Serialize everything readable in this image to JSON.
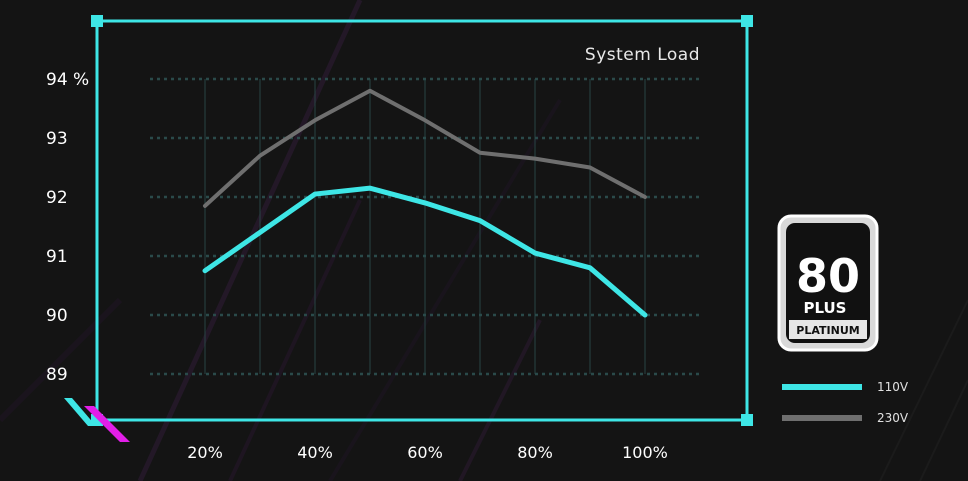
{
  "chart_data": {
    "type": "line",
    "title": "System Load",
    "x_axis_label": "",
    "y_axis_label": "",
    "x_values": [
      20,
      30,
      40,
      50,
      60,
      70,
      80,
      90,
      100
    ],
    "x_ticks": [
      20,
      40,
      60,
      80,
      100
    ],
    "x_tick_labels": [
      "20%",
      "40%",
      "60%",
      "80%",
      "100%"
    ],
    "y_ticks": [
      89,
      90,
      91,
      92,
      93,
      94
    ],
    "y_tick_labels": [
      "89",
      "90",
      "91",
      "92",
      "93",
      "94 %"
    ],
    "ylim": [
      88.9,
      94.1
    ],
    "xlim": [
      20,
      100
    ],
    "grid": true,
    "legend_position": "right",
    "series": [
      {
        "name": "230V",
        "color": "#6f6f6f",
        "values": [
          91.85,
          92.7,
          93.3,
          93.8,
          93.3,
          92.75,
          92.65,
          92.5,
          92.0
        ]
      },
      {
        "name": "110V",
        "color": "#3ee6e6",
        "values": [
          90.75,
          91.4,
          92.05,
          92.15,
          91.9,
          91.6,
          91.05,
          90.8,
          90.0
        ]
      }
    ]
  },
  "legend": [
    {
      "label": "110V",
      "color": "#3ee6e6"
    },
    {
      "label": "230V",
      "color": "#6f6f6f"
    }
  ],
  "badge": {
    "number": "80",
    "plus": "PLUS",
    "tier": "PLATINUM"
  },
  "colors": {
    "frame": "#3ee6e6",
    "accent_magenta": "#e21ee8",
    "background": "#141414",
    "grid": "#2a4a4a"
  }
}
